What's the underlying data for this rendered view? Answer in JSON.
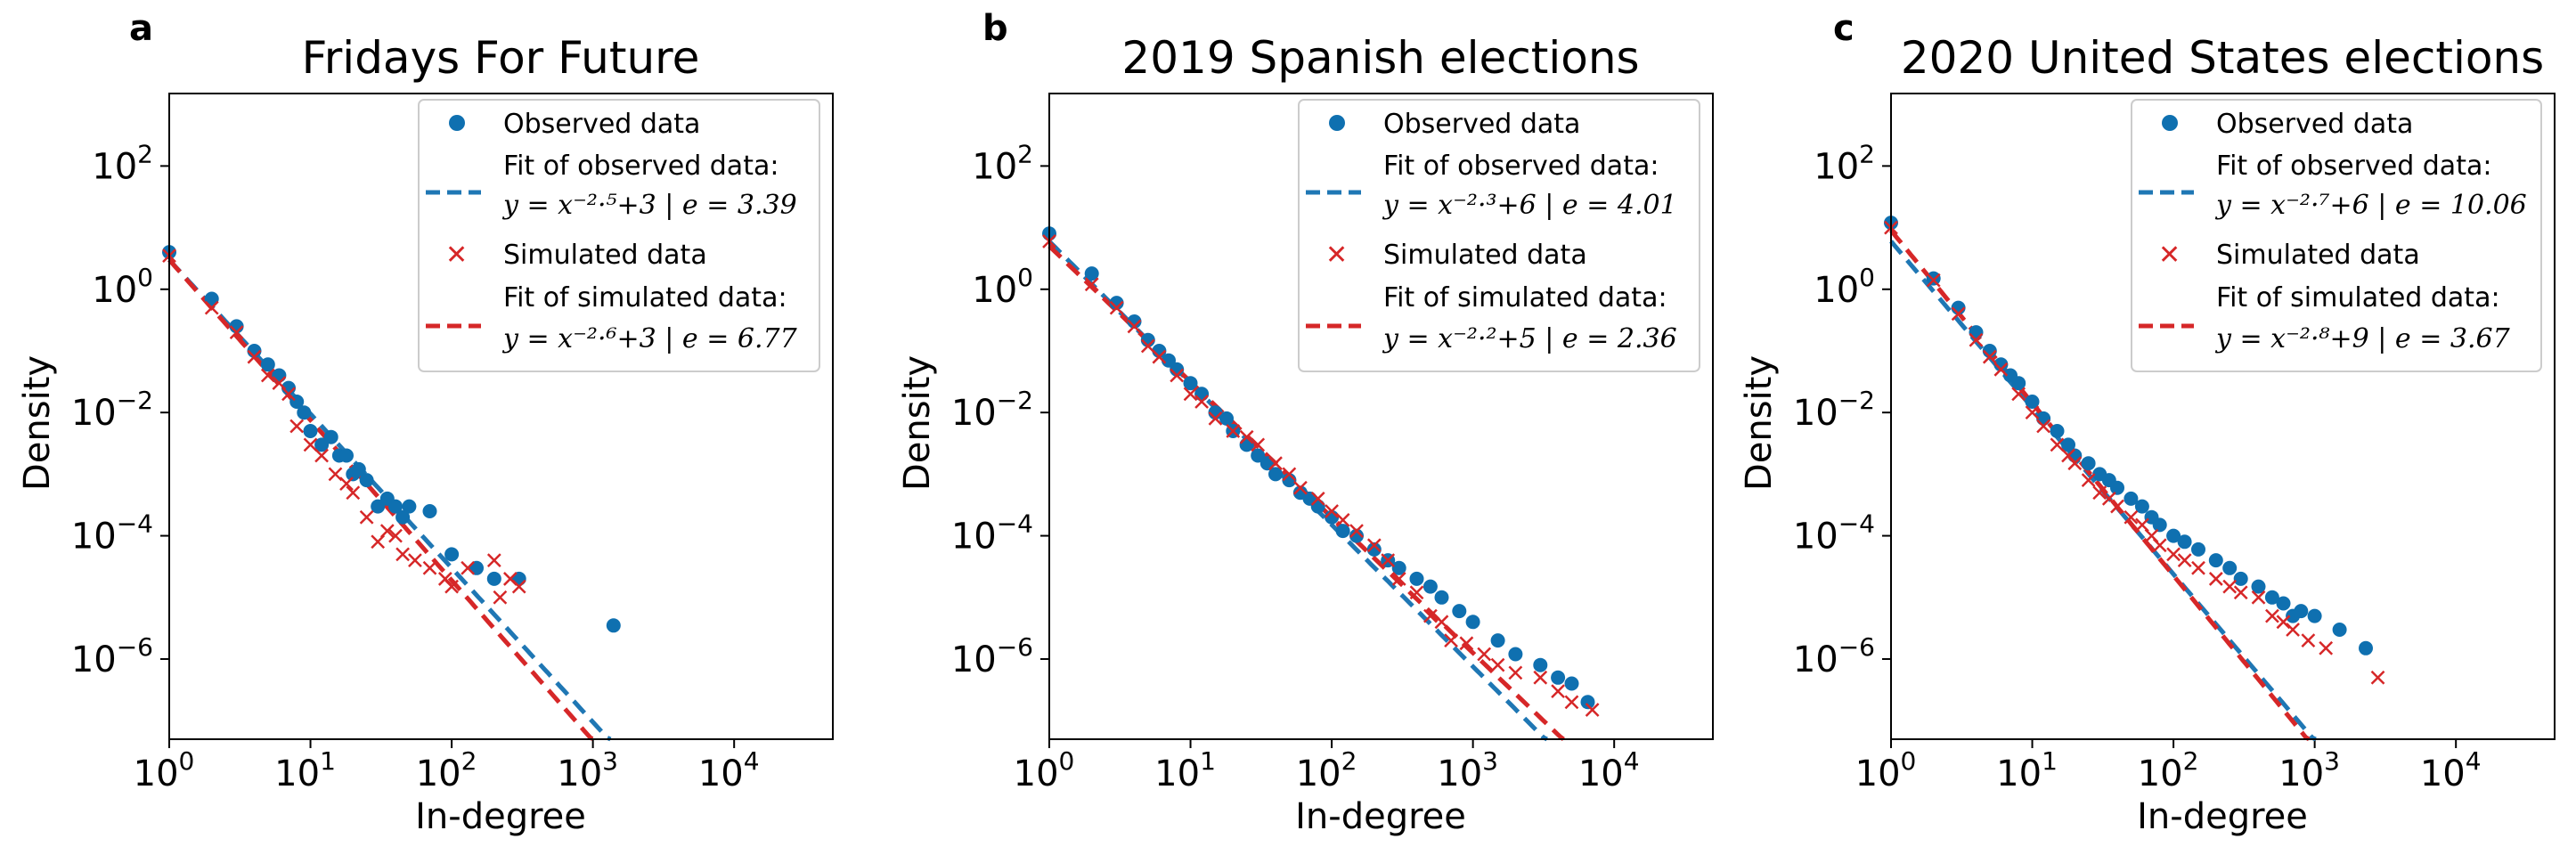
{
  "colors": {
    "observed": "#1f77b4",
    "simulated": "#d62728",
    "observed_point": "#0f70b0"
  },
  "chart_data": [
    {
      "type": "scatter",
      "panel_letter": "a",
      "title": "Fridays For Future",
      "xlabel": "In-degree",
      "ylabel": "Density",
      "xscale": "log",
      "yscale": "log",
      "xlim": [
        1,
        50000
      ],
      "ylim": [
        5e-08,
        1500
      ],
      "x_ticks": [
        {
          "base": "10",
          "exp": "0"
        },
        {
          "base": "10",
          "exp": "1"
        },
        {
          "base": "10",
          "exp": "2"
        },
        {
          "base": "10",
          "exp": "3"
        },
        {
          "base": "10",
          "exp": "4"
        }
      ],
      "y_ticks": [
        {
          "base": "10",
          "exp": "2"
        },
        {
          "base": "10",
          "exp": "0"
        },
        {
          "base": "10",
          "exp": "−2"
        },
        {
          "base": "10",
          "exp": "−4"
        },
        {
          "base": "10",
          "exp": "−6"
        }
      ],
      "legend": {
        "observed_label": "Observed data",
        "observed_fit_label": "Fit of observed data:",
        "observed_fit_eq": "y = x⁻²·⁵+3 | e = 3.39",
        "simulated_label": "Simulated data",
        "simulated_fit_label": "Fit of simulated data:",
        "simulated_fit_eq": "y = x⁻²·⁶+3 | e = 6.77",
        "position": "upper-right"
      },
      "fits": {
        "observed": {
          "slope": 2.5,
          "c": 3
        },
        "simulated": {
          "slope": 2.6,
          "c": 3
        }
      },
      "observed": [
        [
          1,
          4.0
        ],
        [
          2,
          0.7
        ],
        [
          3,
          0.25
        ],
        [
          4,
          0.1
        ],
        [
          5,
          0.06
        ],
        [
          6,
          0.04
        ],
        [
          7,
          0.025
        ],
        [
          8,
          0.015
        ],
        [
          9,
          0.01
        ],
        [
          10,
          0.005
        ],
        [
          12,
          0.003
        ],
        [
          14,
          0.004
        ],
        [
          16,
          0.002
        ],
        [
          18,
          0.002
        ],
        [
          20,
          0.001
        ],
        [
          22,
          0.0012
        ],
        [
          25,
          0.0008
        ],
        [
          30,
          0.0003
        ],
        [
          35,
          0.0004
        ],
        [
          40,
          0.0003
        ],
        [
          45,
          0.0002
        ],
        [
          50,
          0.0003
        ],
        [
          70,
          0.00025
        ],
        [
          100,
          5e-05
        ],
        [
          150,
          3e-05
        ],
        [
          200,
          2e-05
        ],
        [
          300,
          2e-05
        ],
        [
          1400,
          3.5e-06
        ]
      ],
      "simulated": [
        [
          1,
          3.5
        ],
        [
          2,
          0.5
        ],
        [
          3,
          0.2
        ],
        [
          4,
          0.08
        ],
        [
          5,
          0.04
        ],
        [
          6,
          0.03
        ],
        [
          7,
          0.02
        ],
        [
          8,
          0.006
        ],
        [
          10,
          0.003
        ],
        [
          12,
          0.002
        ],
        [
          15,
          0.001
        ],
        [
          18,
          0.0007
        ],
        [
          20,
          0.0005
        ],
        [
          25,
          0.0002
        ],
        [
          30,
          8e-05
        ],
        [
          35,
          0.00012
        ],
        [
          40,
          0.0001
        ],
        [
          45,
          5e-05
        ],
        [
          55,
          4e-05
        ],
        [
          70,
          3e-05
        ],
        [
          90,
          2e-05
        ],
        [
          100,
          1.5e-05
        ],
        [
          130,
          3e-05
        ],
        [
          200,
          4e-05
        ],
        [
          220,
          1e-05
        ],
        [
          260,
          2e-05
        ],
        [
          300,
          1.5e-05
        ]
      ]
    },
    {
      "type": "scatter",
      "panel_letter": "b",
      "title": "2019 Spanish elections",
      "xlabel": "In-degree",
      "ylabel": "Density",
      "xscale": "log",
      "yscale": "log",
      "xlim": [
        1,
        50000
      ],
      "ylim": [
        5e-08,
        1500
      ],
      "x_ticks": [
        {
          "base": "10",
          "exp": "0"
        },
        {
          "base": "10",
          "exp": "1"
        },
        {
          "base": "10",
          "exp": "2"
        },
        {
          "base": "10",
          "exp": "3"
        },
        {
          "base": "10",
          "exp": "4"
        }
      ],
      "y_ticks": [
        {
          "base": "10",
          "exp": "2"
        },
        {
          "base": "10",
          "exp": "0"
        },
        {
          "base": "10",
          "exp": "−2"
        },
        {
          "base": "10",
          "exp": "−4"
        },
        {
          "base": "10",
          "exp": "−6"
        }
      ],
      "legend": {
        "observed_label": "Observed data",
        "observed_fit_label": "Fit of observed data:",
        "observed_fit_eq": "y = x⁻²·³+6 | e = 4.01",
        "simulated_label": "Simulated data",
        "simulated_fit_label": "Fit of simulated data:",
        "simulated_fit_eq": "y = x⁻²·²+5 | e = 2.36",
        "position": "upper-right"
      },
      "fits": {
        "observed": {
          "slope": 2.3,
          "c": 6
        },
        "simulated": {
          "slope": 2.2,
          "c": 5
        }
      },
      "observed": [
        [
          1,
          8
        ],
        [
          2,
          1.8
        ],
        [
          3,
          0.6
        ],
        [
          4,
          0.3
        ],
        [
          5,
          0.15
        ],
        [
          6,
          0.1
        ],
        [
          7,
          0.07
        ],
        [
          8,
          0.05
        ],
        [
          10,
          0.03
        ],
        [
          12,
          0.02
        ],
        [
          15,
          0.01
        ],
        [
          18,
          0.008
        ],
        [
          20,
          0.005
        ],
        [
          25,
          0.003
        ],
        [
          30,
          0.002
        ],
        [
          35,
          0.0015
        ],
        [
          40,
          0.001
        ],
        [
          50,
          0.0008
        ],
        [
          60,
          0.0005
        ],
        [
          70,
          0.0004
        ],
        [
          80,
          0.0003
        ],
        [
          100,
          0.0002
        ],
        [
          120,
          0.00012
        ],
        [
          150,
          0.0001
        ],
        [
          200,
          6e-05
        ],
        [
          250,
          4e-05
        ],
        [
          300,
          3e-05
        ],
        [
          400,
          2e-05
        ],
        [
          500,
          1.5e-05
        ],
        [
          600,
          1e-05
        ],
        [
          800,
          6e-06
        ],
        [
          1000,
          4e-06
        ],
        [
          1500,
          2e-06
        ],
        [
          2000,
          1.2e-06
        ],
        [
          3000,
          8e-07
        ],
        [
          4000,
          5e-07
        ],
        [
          5000,
          4e-07
        ],
        [
          6500,
          2e-07
        ]
      ],
      "simulated": [
        [
          1,
          6
        ],
        [
          2,
          1.2
        ],
        [
          3,
          0.5
        ],
        [
          4,
          0.25
        ],
        [
          5,
          0.12
        ],
        [
          6,
          0.08
        ],
        [
          8,
          0.04
        ],
        [
          10,
          0.02
        ],
        [
          12,
          0.015
        ],
        [
          15,
          0.008
        ],
        [
          20,
          0.005
        ],
        [
          25,
          0.004
        ],
        [
          30,
          0.003
        ],
        [
          40,
          0.0015
        ],
        [
          50,
          0.001
        ],
        [
          60,
          0.0006
        ],
        [
          80,
          0.0004
        ],
        [
          100,
          0.00025
        ],
        [
          120,
          0.00018
        ],
        [
          150,
          0.00012
        ],
        [
          200,
          7e-05
        ],
        [
          250,
          4e-05
        ],
        [
          300,
          2e-05
        ],
        [
          400,
          1.2e-05
        ],
        [
          500,
          5e-06
        ],
        [
          600,
          4e-06
        ],
        [
          700,
          2e-06
        ],
        [
          900,
          1.8e-06
        ],
        [
          1200,
          1.2e-06
        ],
        [
          1500,
          8e-07
        ],
        [
          2000,
          6e-07
        ],
        [
          3000,
          5e-07
        ],
        [
          4000,
          3e-07
        ],
        [
          5000,
          2e-07
        ],
        [
          7000,
          1.5e-07
        ]
      ]
    },
    {
      "type": "scatter",
      "panel_letter": "c",
      "title": "2020 United States elections",
      "xlabel": "In-degree",
      "ylabel": "Density",
      "xscale": "log",
      "yscale": "log",
      "xlim": [
        1,
        50000
      ],
      "ylim": [
        5e-08,
        1500
      ],
      "x_ticks": [
        {
          "base": "10",
          "exp": "0"
        },
        {
          "base": "10",
          "exp": "1"
        },
        {
          "base": "10",
          "exp": "2"
        },
        {
          "base": "10",
          "exp": "3"
        },
        {
          "base": "10",
          "exp": "4"
        }
      ],
      "y_ticks": [
        {
          "base": "10",
          "exp": "2"
        },
        {
          "base": "10",
          "exp": "0"
        },
        {
          "base": "10",
          "exp": "−2"
        },
        {
          "base": "10",
          "exp": "−4"
        },
        {
          "base": "10",
          "exp": "−6"
        }
      ],
      "legend": {
        "observed_label": "Observed data",
        "observed_fit_label": "Fit of observed data:",
        "observed_fit_eq": "y = x⁻²·⁷+6 | e = 10.06",
        "simulated_label": "Simulated data",
        "simulated_fit_label": "Fit of simulated data:",
        "simulated_fit_eq": "y = x⁻²·⁸+9 | e = 3.67",
        "position": "upper-right"
      },
      "fits": {
        "observed": {
          "slope": 2.7,
          "c": 6
        },
        "simulated": {
          "slope": 2.8,
          "c": 9
        }
      },
      "observed": [
        [
          1,
          12
        ],
        [
          2,
          1.5
        ],
        [
          3,
          0.5
        ],
        [
          4,
          0.2
        ],
        [
          5,
          0.1
        ],
        [
          6,
          0.06
        ],
        [
          7,
          0.04
        ],
        [
          8,
          0.03
        ],
        [
          10,
          0.015
        ],
        [
          12,
          0.008
        ],
        [
          15,
          0.005
        ],
        [
          18,
          0.003
        ],
        [
          20,
          0.002
        ],
        [
          25,
          0.0015
        ],
        [
          30,
          0.001
        ],
        [
          35,
          0.0008
        ],
        [
          40,
          0.0006
        ],
        [
          50,
          0.0004
        ],
        [
          60,
          0.0003
        ],
        [
          70,
          0.0002
        ],
        [
          80,
          0.00015
        ],
        [
          100,
          0.0001
        ],
        [
          120,
          8e-05
        ],
        [
          150,
          6e-05
        ],
        [
          200,
          4e-05
        ],
        [
          250,
          3e-05
        ],
        [
          300,
          2e-05
        ],
        [
          400,
          1.5e-05
        ],
        [
          500,
          1e-05
        ],
        [
          600,
          8e-06
        ],
        [
          700,
          5e-06
        ],
        [
          800,
          6e-06
        ],
        [
          1000,
          5e-06
        ],
        [
          1500,
          3e-06
        ],
        [
          2300,
          1.5e-06
        ]
      ],
      "simulated": [
        [
          1,
          10
        ],
        [
          2,
          1.4
        ],
        [
          3,
          0.4
        ],
        [
          4,
          0.15
        ],
        [
          5,
          0.08
        ],
        [
          6,
          0.05
        ],
        [
          8,
          0.02
        ],
        [
          10,
          0.01
        ],
        [
          12,
          0.006
        ],
        [
          15,
          0.003
        ],
        [
          18,
          0.002
        ],
        [
          20,
          0.0015
        ],
        [
          25,
          0.0008
        ],
        [
          30,
          0.0005
        ],
        [
          35,
          0.0004
        ],
        [
          40,
          0.0003
        ],
        [
          50,
          0.0002
        ],
        [
          60,
          0.00015
        ],
        [
          70,
          0.0001
        ],
        [
          80,
          7e-05
        ],
        [
          100,
          5e-05
        ],
        [
          120,
          4e-05
        ],
        [
          150,
          3e-05
        ],
        [
          200,
          2e-05
        ],
        [
          250,
          1.5e-05
        ],
        [
          300,
          1.2e-05
        ],
        [
          400,
          1e-05
        ],
        [
          500,
          5e-06
        ],
        [
          600,
          4e-06
        ],
        [
          700,
          3e-06
        ],
        [
          900,
          2e-06
        ],
        [
          1200,
          1.5e-06
        ],
        [
          2800,
          5e-07
        ]
      ]
    }
  ]
}
